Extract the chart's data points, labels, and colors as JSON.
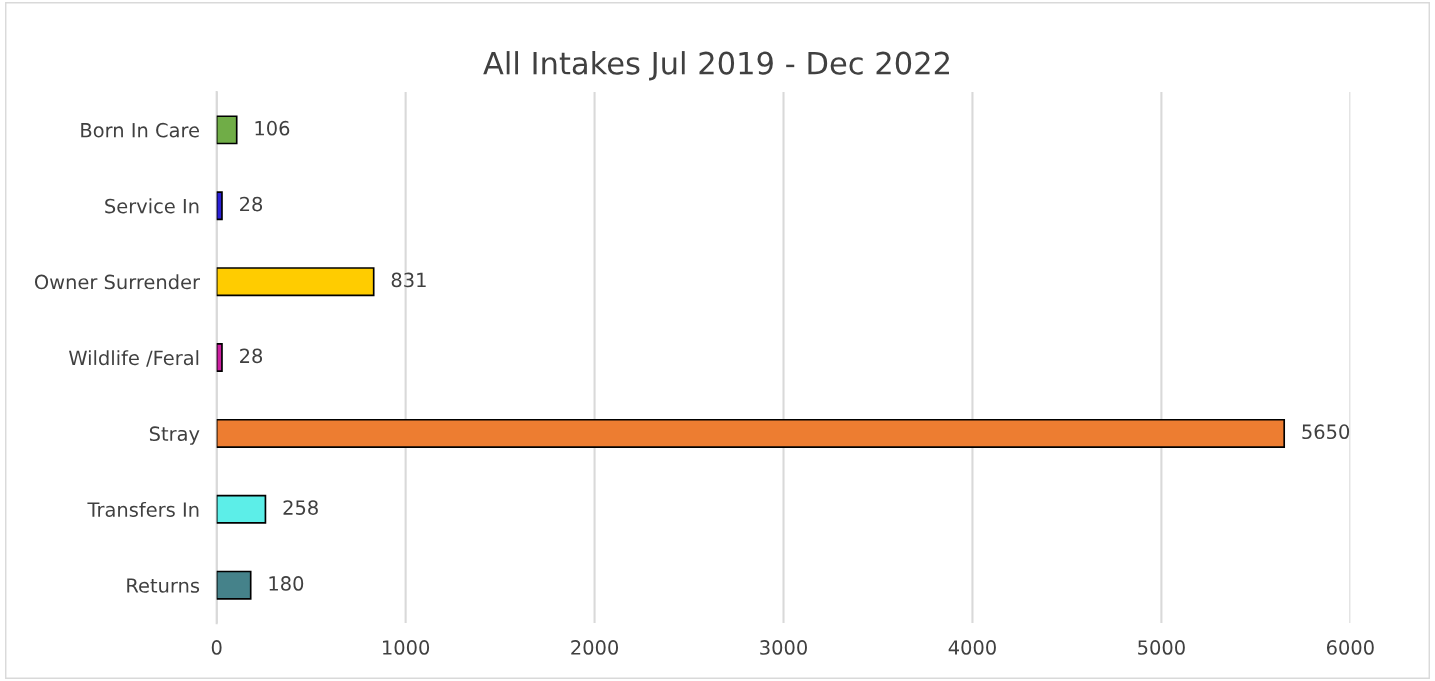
{
  "chart_data": {
    "type": "bar",
    "orientation": "horizontal",
    "title": "All Intakes Jul 2019 - Dec 2022",
    "categories": [
      "Born In Care",
      "Service In",
      "Owner Surrender",
      "Wildlife /Feral",
      "Stray",
      "Transfers In",
      "Returns"
    ],
    "values": [
      106,
      28,
      831,
      28,
      5650,
      258,
      180
    ],
    "colors": [
      "#70ad47",
      "#2a1fd6",
      "#ffcc00",
      "#cc1fa0",
      "#ed7d31",
      "#5ceee8",
      "#45828a"
    ],
    "xlim": [
      0,
      6000
    ],
    "xticks": [
      0,
      1000,
      2000,
      3000,
      4000,
      5000,
      6000
    ],
    "grid": "x",
    "data_labels": true
  }
}
